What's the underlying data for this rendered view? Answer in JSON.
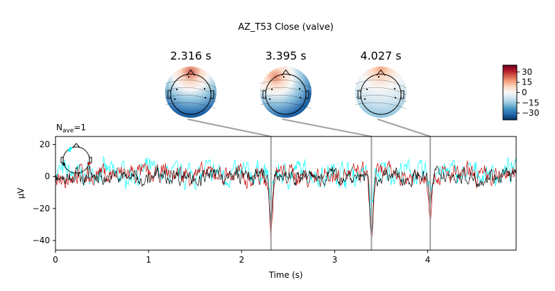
{
  "title": "AZ_T53 Close (valve)",
  "nave": {
    "prefix": "N",
    "sub": "ave",
    "suffix": "=1"
  },
  "chart_data": [
    {
      "type": "line",
      "title": "",
      "xlabel": "Time (s)",
      "ylabel": "µV",
      "xlim": [
        0,
        4.95
      ],
      "ylim": [
        -46,
        25
      ],
      "xticks": [
        "0",
        "1",
        "2",
        "3",
        "4"
      ],
      "yticks": [
        "20",
        "0",
        "−20",
        "−40"
      ],
      "grid": false,
      "series": [
        {
          "color": "#00ffff",
          "mean": 2,
          "amp": 6
        },
        {
          "color": "#cc0000",
          "mean": 1,
          "amp": 5
        },
        {
          "color": "#000000",
          "mean": 0,
          "amp": 4
        }
      ],
      "events": [
        {
          "t": 2.316,
          "peak": -35
        },
        {
          "t": 3.395,
          "peak": -44
        },
        {
          "t": 4.027,
          "peak": -21
        }
      ]
    },
    {
      "type": "heatmap",
      "title": "",
      "topomaps": [
        {
          "time_label": "2.316 s",
          "t": 2.316,
          "pattern": "front-pos-back-neg"
        },
        {
          "time_label": "3.395 s",
          "t": 3.395,
          "pattern": "leftfront-pos-right-neg"
        },
        {
          "time_label": "4.027 s",
          "t": 4.027,
          "pattern": "weak-front-pos"
        }
      ],
      "colorbar": {
        "range": [
          -40,
          40
        ],
        "ticks": [
          "30",
          "15",
          "0",
          "−15",
          "−30"
        ],
        "tick_values": [
          30,
          15,
          0,
          -15,
          -30
        ],
        "colors": [
          "#053061",
          "#2166ac",
          "#4393c3",
          "#92c5de",
          "#d1e5f0",
          "#f7f7f7",
          "#fddbc7",
          "#f4a582",
          "#d6604d",
          "#b2182b",
          "#67001f"
        ]
      }
    }
  ]
}
